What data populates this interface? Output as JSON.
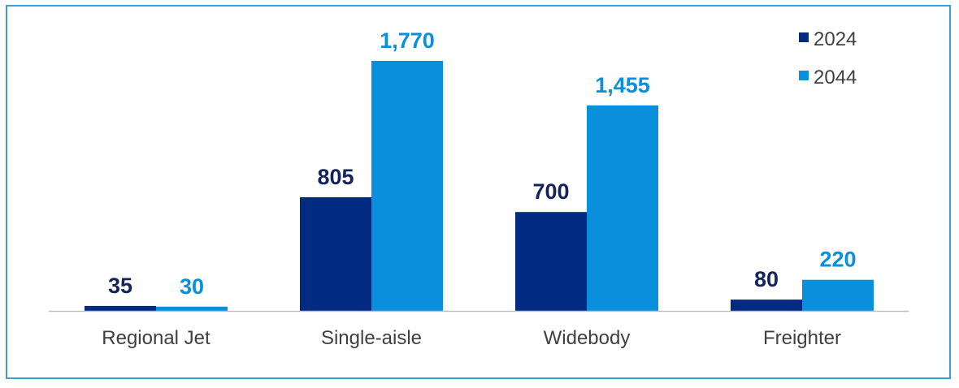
{
  "chart_data": {
    "type": "bar",
    "title": "",
    "xlabel": "",
    "ylabel": "",
    "categories": [
      "Regional Jet",
      "Single-aisle",
      "Widebody",
      "Freighter"
    ],
    "series": [
      {
        "name": "2024",
        "values": [
          35,
          805,
          700,
          80
        ],
        "labels": [
          "35",
          "805",
          "700",
          "80"
        ],
        "color": "#002b80"
      },
      {
        "name": "2044",
        "values": [
          30,
          1770,
          1455,
          220
        ],
        "labels": [
          "30",
          "1,770",
          "1,455",
          "220"
        ],
        "color": "#0a8fdc"
      }
    ],
    "ylim": [
      0,
      2000
    ],
    "grid": false,
    "legend": "top-right",
    "axis_color": "#bfbfbf",
    "frame_color": "#3aa0d0"
  }
}
